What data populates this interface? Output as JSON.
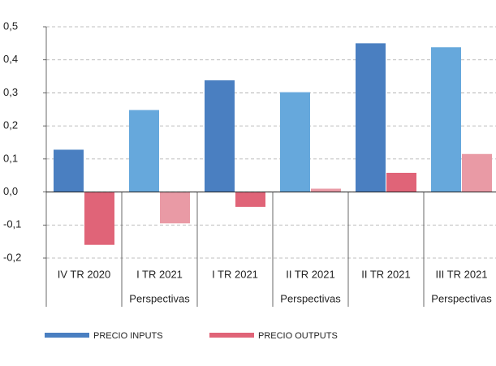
{
  "chart_data": {
    "type": "bar",
    "categories": [
      [
        "IV TR 2020"
      ],
      [
        "I TR 2021",
        "Perspectivas"
      ],
      [
        "I TR 2021"
      ],
      [
        "II TR 2021",
        "Perspectivas"
      ],
      [
        "II TR 2021"
      ],
      [
        "III TR 2021",
        "Perspectivas"
      ]
    ],
    "series": [
      {
        "name": "PRECIO INPUTS",
        "color": "#4a7fc1",
        "colors": [
          "#4a7fc1",
          "#66a8dc",
          "#4a7fc1",
          "#66a8dc",
          "#4a7fc1",
          "#66a8dc"
        ],
        "values": [
          0.128,
          0.248,
          0.338,
          0.302,
          0.45,
          0.438
        ]
      },
      {
        "name": "PRECIO OUTPUTS",
        "color": "#e06478",
        "colors": [
          "#e06478",
          "#e99aa5",
          "#e06478",
          "#e99aa5",
          "#e06478",
          "#e99aa5"
        ],
        "values": [
          -0.16,
          -0.095,
          -0.045,
          0.01,
          0.058,
          0.115
        ]
      }
    ],
    "ylim": [
      -0.2,
      0.5
    ],
    "yticks": [
      {
        "value": 0.5,
        "label": "0,5"
      },
      {
        "value": 0.4,
        "label": "0,4"
      },
      {
        "value": 0.3,
        "label": "0,3"
      },
      {
        "value": 0.2,
        "label": "0,2"
      },
      {
        "value": 0.1,
        "label": "0,1"
      },
      {
        "value": 0,
        "label": "0,0"
      },
      {
        "value": -0.1,
        "label": "-0,1"
      },
      {
        "value": -0.2,
        "label": "-0,2"
      }
    ],
    "grid": true
  }
}
